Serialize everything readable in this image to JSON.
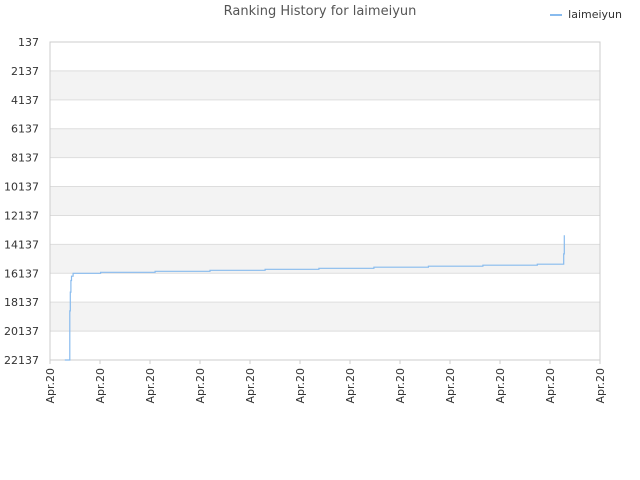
{
  "chart_data": {
    "type": "line",
    "title": "Ranking History for laimeiyun",
    "xlabel": "",
    "ylabel": "",
    "y_inverted": true,
    "ylim": [
      137,
      22137
    ],
    "y_ticks": [
      137,
      2137,
      4137,
      6137,
      8137,
      10137,
      12137,
      14137,
      16137,
      18137,
      20137,
      22137
    ],
    "y_tick_labels": [
      "137",
      "2137",
      "4137",
      "6137",
      "8137",
      "10137",
      "12137",
      "14137",
      "16137",
      "18137",
      "20137",
      "22137"
    ],
    "x_tick_labels": [
      "Apr.20",
      "Apr.20",
      "Apr.20",
      "Apr.20",
      "Apr.20",
      "Apr.20",
      "Apr.20",
      "Apr.20",
      "Apr.20",
      "Apr.20",
      "Apr.20",
      "Apr.20"
    ],
    "grid": true,
    "legend_position": "top-right",
    "series": [
      {
        "name": "laimeiyun",
        "color": "#88bbee",
        "x_fraction": [
          0.027,
          0.036,
          0.036,
          0.037,
          0.037,
          0.038,
          0.038,
          0.039,
          0.039,
          0.042,
          0.042,
          0.092,
          0.092,
          0.191,
          0.191,
          0.291,
          0.291,
          0.391,
          0.391,
          0.489,
          0.489,
          0.589,
          0.589,
          0.688,
          0.688,
          0.787,
          0.787,
          0.886,
          0.886,
          0.934,
          0.934,
          0.935,
          0.935
        ],
        "values": [
          22137,
          22137,
          18737,
          18737,
          17437,
          17437,
          16637,
          16637,
          16337,
          16337,
          16137,
          16137,
          16070,
          16070,
          16000,
          16000,
          15930,
          15930,
          15860,
          15860,
          15790,
          15790,
          15720,
          15720,
          15650,
          15650,
          15580,
          15580,
          15510,
          15510,
          14800,
          14800,
          13500
        ]
      }
    ],
    "colors": {
      "band": "#f3f3f3",
      "grid": "#dddddd",
      "axis": "#cccccc",
      "tick_text": "#333333"
    }
  }
}
